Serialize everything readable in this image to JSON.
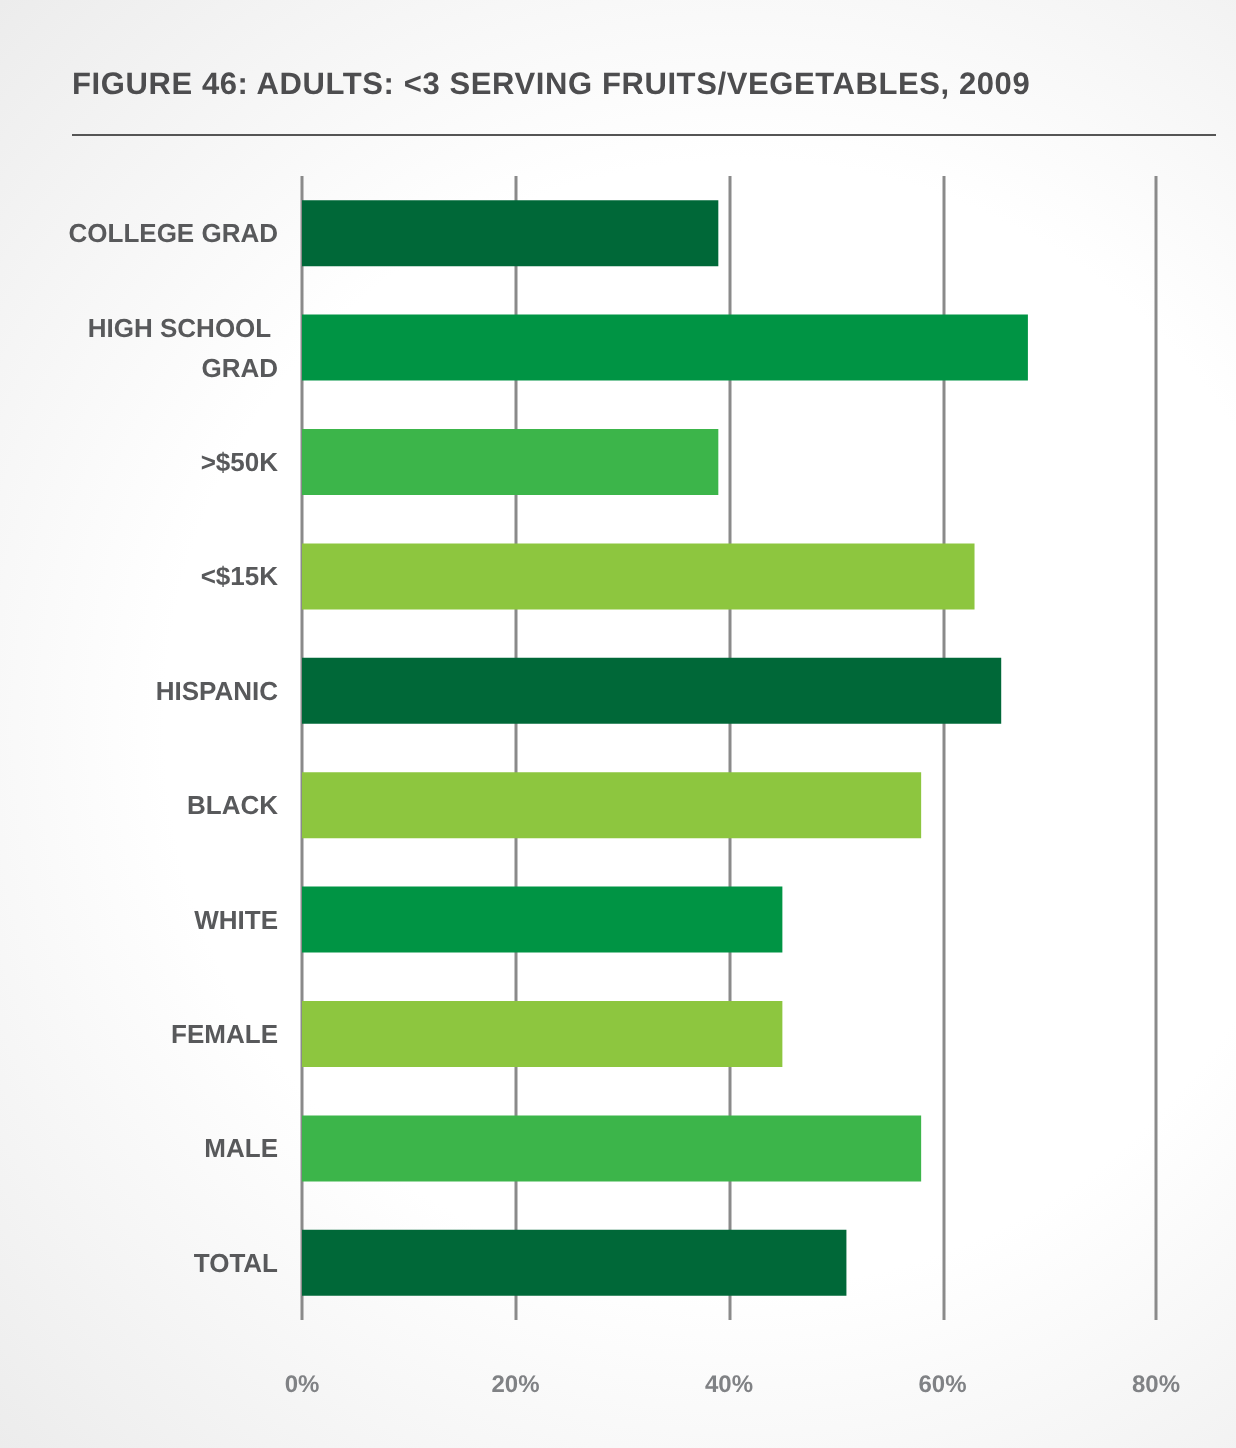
{
  "chart_data": {
    "type": "bar",
    "orientation": "horizontal",
    "title": "FIGURE 46: ADULTS: <3 SERVING FRUITS/VEGETABLES, 2009",
    "categories": [
      "COLLEGE GRAD",
      "HIGH SCHOOL GRAD",
      ">$50K",
      "<$15K",
      "HISPANIC",
      "BLACK",
      "WHITE",
      "FEMALE",
      "MALE",
      "TOTAL"
    ],
    "values": [
      39,
      68,
      39,
      63,
      65.5,
      58,
      45,
      45,
      58,
      51
    ],
    "colors": [
      "#006838",
      "#009444",
      "#3cb54a",
      "#8dc63f",
      "#006838",
      "#8dc63f",
      "#009444",
      "#8dc63f",
      "#3cb54a",
      "#006838"
    ],
    "xlim": [
      0,
      80
    ],
    "xticks": [
      {
        "value": 0,
        "label": "0%"
      },
      {
        "value": 20,
        "label": "20%"
      },
      {
        "value": 40,
        "label": "40%"
      },
      {
        "value": 60,
        "label": "60%"
      },
      {
        "value": 80,
        "label": "80%"
      }
    ],
    "grid": "x"
  }
}
